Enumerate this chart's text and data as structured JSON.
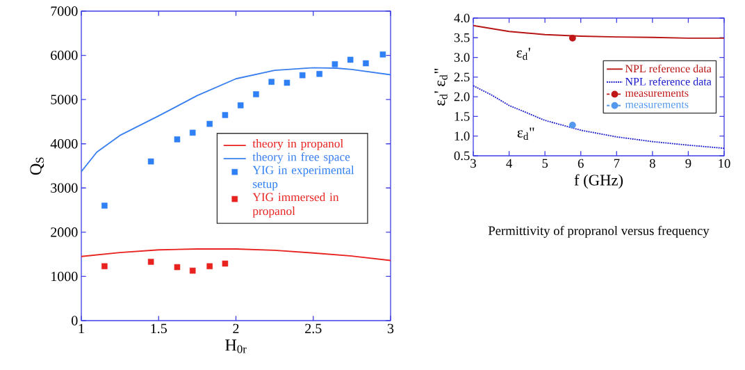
{
  "chart_data": [
    {
      "type": "line",
      "xlabel": "H$_{0r}$",
      "ylabel": "Q$_{S}$",
      "xlim": [
        1,
        3
      ],
      "ylim": [
        0,
        7000
      ],
      "xticks": [
        1,
        1.5,
        2,
        2.5,
        3
      ],
      "yticks": [
        0,
        1000,
        2000,
        3000,
        4000,
        5000,
        6000,
        7000
      ],
      "legend": "right",
      "series": [
        {
          "name": "theory in propanol",
          "color": "#e8221f",
          "x": [
            1,
            1.25,
            1.5,
            1.75,
            2,
            2.25,
            2.5,
            2.75,
            3
          ],
          "values": [
            1450,
            1540,
            1600,
            1620,
            1620,
            1590,
            1530,
            1460,
            1360
          ]
        },
        {
          "name": "theory in free space",
          "color": "#3a7ff0",
          "x": [
            1,
            1.1,
            1.25,
            1.5,
            1.75,
            2,
            2.25,
            2.5,
            2.65,
            2.75,
            3
          ],
          "values": [
            3370,
            3810,
            4190,
            4630,
            5090,
            5470,
            5660,
            5720,
            5710,
            5680,
            5560
          ]
        },
        {
          "name": "YIG in experimental setup",
          "type": "scatter",
          "marker": "square",
          "color": "#2f7ff5",
          "x": [
            1.15,
            1.45,
            1.62,
            1.72,
            1.83,
            1.93,
            2.03,
            2.13,
            2.23,
            2.33,
            2.43,
            2.54,
            2.64,
            2.74,
            2.84,
            2.95
          ],
          "values": [
            2600,
            3600,
            4100,
            4250,
            4450,
            4650,
            4870,
            5120,
            5400,
            5380,
            5550,
            5580,
            5800,
            5900,
            5820,
            6020
          ]
        },
        {
          "name": "YIG immersed in propanol",
          "type": "scatter",
          "marker": "square",
          "color": "#e8221f",
          "x": [
            1.15,
            1.45,
            1.62,
            1.72,
            1.83,
            1.93
          ],
          "values": [
            1230,
            1330,
            1210,
            1130,
            1230,
            1290
          ]
        }
      ]
    },
    {
      "type": "line",
      "title": "Permittivity of propranol versus frequency",
      "xlabel": "f (GHz)",
      "ylabel": "ε$_{d}$' ε$_{d}$\"",
      "xlim": [
        3,
        10
      ],
      "ylim": [
        0.5,
        4.0
      ],
      "xticks": [
        3,
        4,
        5,
        6,
        7,
        8,
        9,
        10
      ],
      "yticks": [
        {
          "value": 0.5,
          "label": "0.5"
        },
        {
          "value": 1,
          "label": "1.0"
        },
        {
          "value": 1.5,
          "label": "1.5"
        },
        {
          "value": 2,
          "label": "2.0"
        },
        {
          "value": 2.5,
          "label": "2.5"
        },
        {
          "value": 3,
          "label": "3.0"
        },
        {
          "value": 3.5,
          "label": "3.5"
        },
        {
          "value": 4,
          "label": "4.0"
        }
      ],
      "legend": "right",
      "annotations": [
        "ε$_{d}$'",
        "ε$_{d}$\""
      ],
      "series": [
        {
          "name": "NPL reference data",
          "line_style": "solid",
          "color": "#b81414",
          "x": [
            3,
            4,
            5,
            6,
            7,
            8,
            9,
            10
          ],
          "values": [
            3.81,
            3.66,
            3.58,
            3.54,
            3.52,
            3.51,
            3.49,
            3.49
          ]
        },
        {
          "name": "NPL reference data",
          "line_style": "dotted",
          "color": "#1a1acc",
          "x": [
            3,
            3.5,
            4,
            5,
            6,
            7,
            8,
            9,
            10
          ],
          "values": [
            2.28,
            2.05,
            1.78,
            1.4,
            1.15,
            0.98,
            0.86,
            0.77,
            0.69
          ]
        },
        {
          "name": "measurements",
          "line_style": "dashed",
          "marker": "circle",
          "color": "#c01818",
          "x": [
            5.77
          ],
          "values": [
            3.49
          ]
        },
        {
          "name": "measurements",
          "line_style": "dashed",
          "marker": "circle",
          "color": "#5599ee",
          "x": [
            5.77
          ],
          "values": [
            1.28
          ]
        }
      ]
    }
  ]
}
